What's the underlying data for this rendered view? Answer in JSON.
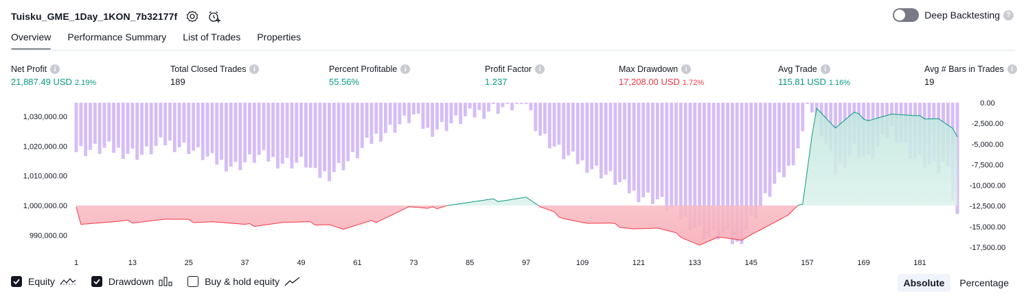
{
  "header": {
    "strategy_name": "Tuisku_GME_1Day_1KON_7b32177f",
    "settings_icon": "settings-icon",
    "add_alert_icon": "add-alert-icon",
    "deep_backtesting_label": "Deep Backtesting",
    "deep_backtesting_on": false
  },
  "tabs": [
    {
      "label": "Overview",
      "active": true
    },
    {
      "label": "Performance Summary",
      "active": false
    },
    {
      "label": "List of Trades",
      "active": false
    },
    {
      "label": "Properties",
      "active": false
    }
  ],
  "metrics": [
    {
      "label": "Net Profit",
      "value": "21,887.49 USD",
      "pct": "2.19%",
      "tone": "pos"
    },
    {
      "label": "Total Closed Trades",
      "value": "189",
      "pct": "",
      "tone": "neutral"
    },
    {
      "label": "Percent Profitable",
      "value": "55.56%",
      "pct": "",
      "tone": "pos"
    },
    {
      "label": "Profit Factor",
      "value": "1.237",
      "pct": "",
      "tone": "pos"
    },
    {
      "label": "Max Drawdown",
      "value": "17,208.00 USD",
      "pct": "1.72%",
      "tone": "neg"
    },
    {
      "label": "Avg Trade",
      "value": "115.81 USD",
      "pct": "1.16%",
      "tone": "pos"
    },
    {
      "label": "Avg # Bars in Trades",
      "value": "19",
      "pct": "",
      "tone": "neutral"
    }
  ],
  "chart_data": {
    "type": "line",
    "x_ticks": [
      "1",
      "13",
      "25",
      "37",
      "49",
      "61",
      "73",
      "85",
      "97",
      "109",
      "121",
      "133",
      "145",
      "157",
      "169",
      "181"
    ],
    "x_range": [
      1,
      189
    ],
    "left_axis": {
      "ticks": [
        "1,030,000.00",
        "1,020,000.00",
        "1,010,000.00",
        "1,000,000.00",
        "990,000.00"
      ],
      "range": [
        986000,
        1034000
      ],
      "baseline": 1000000
    },
    "right_axis": {
      "ticks": [
        "0.00",
        "-2,500.00",
        "-5,000.00",
        "-7,500.00",
        "-10,000.00",
        "-12,500.00",
        "-15,000.00",
        "-17,500.00"
      ],
      "range": [
        -17500,
        0
      ]
    },
    "equity_keypoints": [
      [
        1,
        999900
      ],
      [
        2,
        994000
      ],
      [
        10,
        994300
      ],
      [
        20,
        995300
      ],
      [
        25,
        994800
      ],
      [
        30,
        994700
      ],
      [
        37,
        993200
      ],
      [
        45,
        994300
      ],
      [
        55,
        993800
      ],
      [
        58,
        992000
      ],
      [
        65,
        994800
      ],
      [
        72,
        999500
      ],
      [
        76,
        998600
      ],
      [
        80,
        1000300
      ],
      [
        90,
        1001700
      ],
      [
        97,
        1002800
      ],
      [
        100,
        999300
      ],
      [
        105,
        996000
      ],
      [
        110,
        994000
      ],
      [
        115,
        993600
      ],
      [
        120,
        992400
      ],
      [
        125,
        992200
      ],
      [
        130,
        989800
      ],
      [
        134,
        986800
      ],
      [
        138,
        989200
      ],
      [
        142,
        988000
      ],
      [
        145,
        990500
      ],
      [
        150,
        994200
      ],
      [
        153,
        996500
      ],
      [
        156,
        1001000
      ],
      [
        158,
        1024000
      ],
      [
        159,
        1033000
      ],
      [
        163,
        1026000
      ],
      [
        167,
        1031000
      ],
      [
        170,
        1029000
      ],
      [
        175,
        1030800
      ],
      [
        180,
        1029800
      ],
      [
        185,
        1029500
      ],
      [
        188,
        1026000
      ],
      [
        189,
        1023000
      ]
    ],
    "drawdown_keypoints": [
      [
        1,
        -5800
      ],
      [
        8,
        -5600
      ],
      [
        15,
        -6300
      ],
      [
        20,
        -4800
      ],
      [
        25,
        -5500
      ],
      [
        30,
        -7000
      ],
      [
        35,
        -7700
      ],
      [
        40,
        -6500
      ],
      [
        45,
        -7200
      ],
      [
        50,
        -7300
      ],
      [
        52,
        -8800
      ],
      [
        55,
        -8600
      ],
      [
        60,
        -6700
      ],
      [
        65,
        -4100
      ],
      [
        70,
        -2600
      ],
      [
        73,
        -1600
      ],
      [
        76,
        -3400
      ],
      [
        80,
        -2700
      ],
      [
        85,
        -1600
      ],
      [
        90,
        -700
      ],
      [
        95,
        -300
      ],
      [
        97,
        0
      ],
      [
        100,
        -3800
      ],
      [
        105,
        -6300
      ],
      [
        110,
        -7600
      ],
      [
        115,
        -9000
      ],
      [
        120,
        -11000
      ],
      [
        125,
        -11700
      ],
      [
        130,
        -13800
      ],
      [
        133,
        -15000
      ],
      [
        136,
        -16200
      ],
      [
        139,
        -15900
      ],
      [
        142,
        -17200
      ],
      [
        145,
        -14200
      ],
      [
        150,
        -10000
      ],
      [
        153,
        -8000
      ],
      [
        156,
        -4000
      ],
      [
        157,
        0
      ],
      [
        160,
        -3500
      ],
      [
        163,
        -8400
      ],
      [
        167,
        -5500
      ],
      [
        170,
        -7000
      ],
      [
        175,
        -3200
      ],
      [
        180,
        -6800
      ],
      [
        185,
        -8200
      ],
      [
        187,
        -6800
      ],
      [
        188,
        -11700
      ],
      [
        189,
        -14000
      ]
    ]
  },
  "legend": [
    {
      "label": "Equity",
      "checked": true,
      "icon": "equity-line-icon"
    },
    {
      "label": "Drawdown",
      "checked": true,
      "icon": "drawdown-bars-icon"
    },
    {
      "label": "Buy & hold equity",
      "checked": false,
      "icon": "buy-hold-line-icon"
    }
  ],
  "mode": {
    "absolute_label": "Absolute",
    "percentage_label": "Percentage",
    "selected": "Absolute"
  },
  "colors": {
    "positive": "#089981",
    "negative": "#f23645",
    "drawdown_bar": "#d5bdf7",
    "equity_fill_pos": "#d8f0ea",
    "equity_fill_neg": "#fbd4d8"
  }
}
